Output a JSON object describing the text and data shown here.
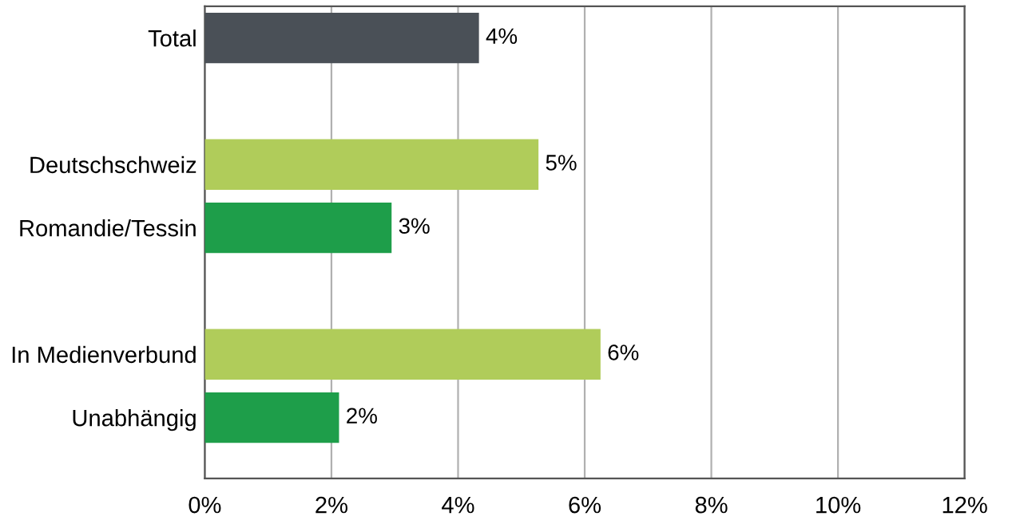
{
  "chart_data": {
    "type": "bar",
    "orientation": "horizontal",
    "categories": [
      "Total",
      null,
      "Deutschschweiz",
      "Romandie/Tessin",
      null,
      "In Medienverbund",
      "Unabhängig"
    ],
    "values": [
      4.33,
      null,
      5.27,
      2.95,
      null,
      6.25,
      2.12
    ],
    "colors": [
      "#4a5057",
      null,
      "#b0cc5a",
      "#1e9e4a",
      null,
      "#b0cc5a",
      "#1e9e4a"
    ],
    "value_labels": [
      "4%",
      null,
      "5%",
      "3%",
      null,
      "6%",
      "2%"
    ],
    "xlim": [
      0,
      12
    ],
    "xticks": [
      {
        "value": 0,
        "label": "0%"
      },
      {
        "value": 2,
        "label": "2%"
      },
      {
        "value": 4,
        "label": "4%"
      },
      {
        "value": 6,
        "label": "6%"
      },
      {
        "value": 8,
        "label": "8%"
      },
      {
        "value": 10,
        "label": "10%"
      },
      {
        "value": 12,
        "label": "12%"
      }
    ],
    "grid": "x",
    "legend": false
  }
}
